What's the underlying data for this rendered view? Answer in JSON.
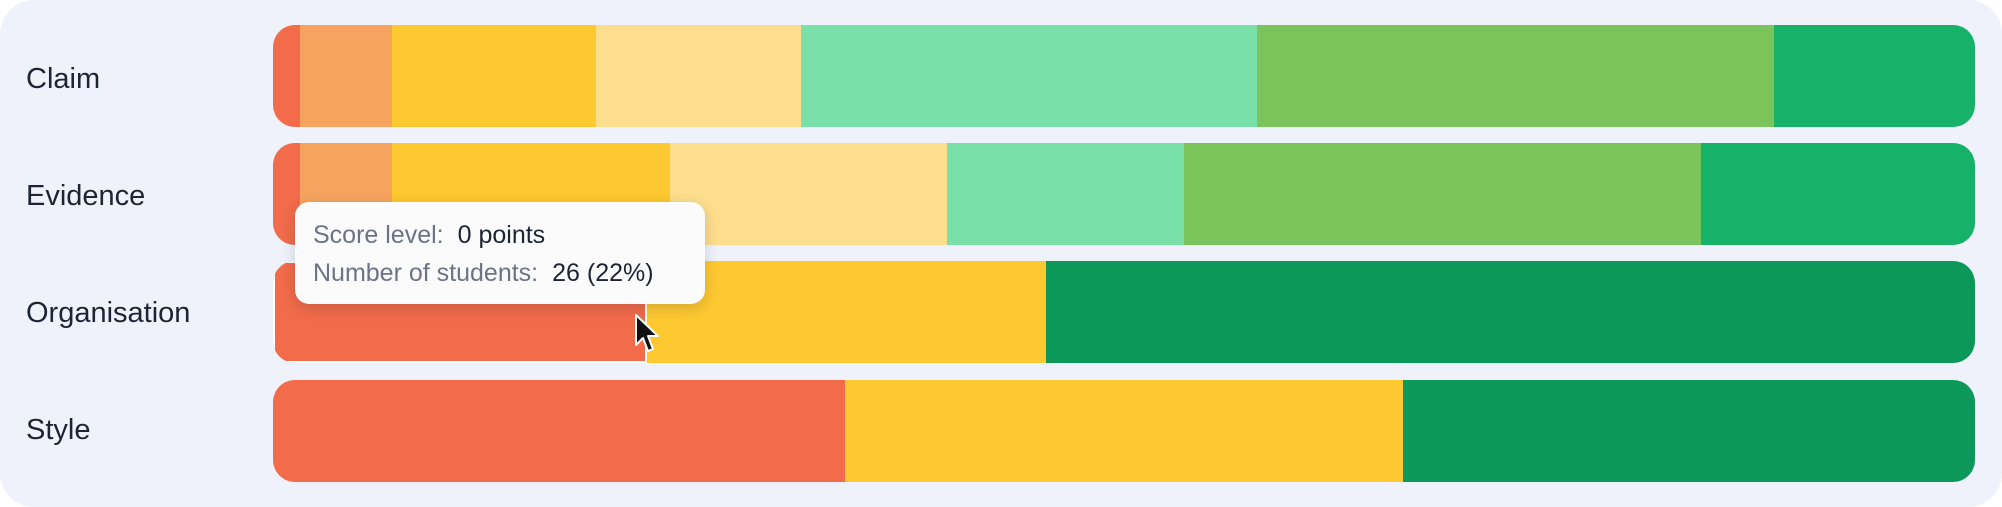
{
  "chart_data": {
    "type": "bar",
    "orientation": "horizontal",
    "stacked": true,
    "normalized": true,
    "categories": [
      "Claim",
      "Evidence",
      "Organisation",
      "Style"
    ],
    "colors": {
      "lvl0": "#f26b4a",
      "lvl1": "#f5a35e",
      "lvl2": "#fec830",
      "lvl3": "#fdde8c",
      "lvl4": "#78e0a8",
      "lvl5": "#7bc45c",
      "lvl6": "#17b26a",
      "top": "#0b9858"
    },
    "rows": [
      {
        "name": "Claim",
        "segments": [
          {
            "level": "lvl0",
            "fraction": 0.016
          },
          {
            "level": "lvl1",
            "fraction": 0.054
          },
          {
            "level": "lvl2",
            "fraction": 0.12
          },
          {
            "level": "lvl3",
            "fraction": 0.12
          },
          {
            "level": "lvl4",
            "fraction": 0.268
          },
          {
            "level": "lvl5",
            "fraction": 0.304
          },
          {
            "level": "lvl6",
            "fraction": 0.118
          }
        ]
      },
      {
        "name": "Evidence",
        "segments": [
          {
            "level": "lvl0",
            "fraction": 0.016
          },
          {
            "level": "lvl1",
            "fraction": 0.054
          },
          {
            "level": "lvl2",
            "fraction": 0.163
          },
          {
            "level": "lvl3",
            "fraction": 0.163
          },
          {
            "level": "lvl4",
            "fraction": 0.139
          },
          {
            "level": "lvl5",
            "fraction": 0.304
          },
          {
            "level": "lvl6",
            "fraction": 0.161
          }
        ]
      },
      {
        "name": "Organisation",
        "segments": [
          {
            "level": "lvl0",
            "fraction": 0.22,
            "hovered": true
          },
          {
            "level": "lvl2",
            "fraction": 0.234
          },
          {
            "level": "top",
            "fraction": 0.546
          }
        ]
      },
      {
        "name": "Style",
        "segments": [
          {
            "level": "lvl0",
            "fraction": 0.336
          },
          {
            "level": "lvl2",
            "fraction": 0.328
          },
          {
            "level": "top",
            "fraction": 0.336
          }
        ]
      }
    ],
    "tooltip": {
      "score_label": "Score level:",
      "score_value": "0 points",
      "students_label": "Number of students:",
      "students_value": "26 (22%)"
    }
  }
}
